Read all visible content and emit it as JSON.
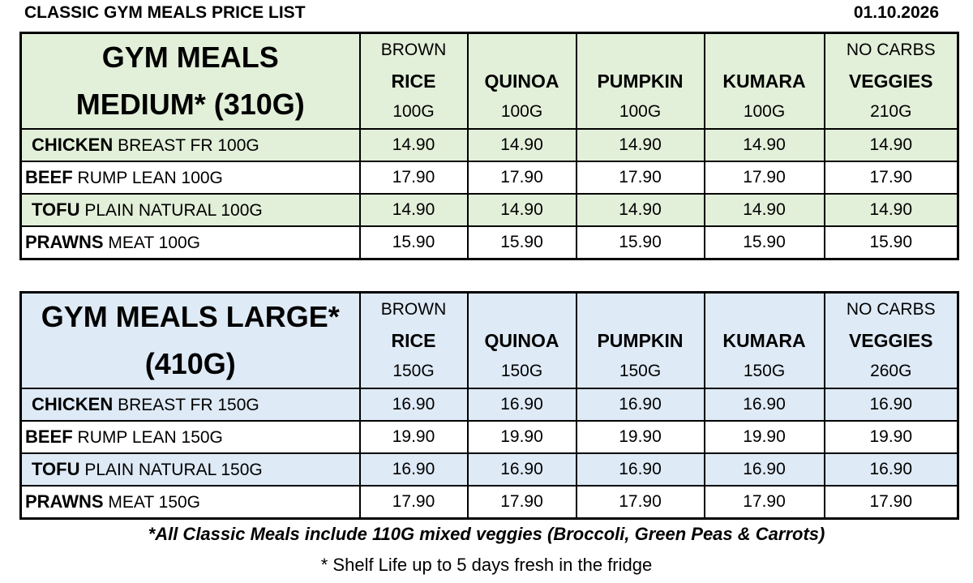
{
  "header": {
    "title": "CLASSIC GYM MEALS PRICE LIST",
    "date": "01.10.2026"
  },
  "tables": [
    {
      "title_lines": [
        "GYM MEALS",
        "MEDIUM* (310G)"
      ],
      "columns": [
        {
          "note": "BROWN",
          "name": "RICE",
          "weight": "100G"
        },
        {
          "name": "QUINOA",
          "weight": "100G"
        },
        {
          "name": "PUMPKIN",
          "weight": "100G"
        },
        {
          "name": "KUMARA",
          "weight": "100G"
        },
        {
          "note": "NO CARBS",
          "name": "VEGGIES",
          "weight": "210G"
        }
      ],
      "rows": [
        {
          "protein": "CHICKEN",
          "description": "BREAST FR 100G",
          "prices": [
            "14.90",
            "14.90",
            "14.90",
            "14.90",
            "14.90"
          ]
        },
        {
          "protein": "BEEF",
          "description": "RUMP LEAN 100G",
          "prices": [
            "17.90",
            "17.90",
            "17.90",
            "17.90",
            "17.90"
          ]
        },
        {
          "protein": "TOFU",
          "description": "PLAIN NATURAL 100G",
          "prices": [
            "14.90",
            "14.90",
            "14.90",
            "14.90",
            "14.90"
          ]
        },
        {
          "protein": "PRAWNS",
          "description": "MEAT 100G",
          "prices": [
            "15.90",
            "15.90",
            "15.90",
            "15.90",
            "15.90"
          ]
        }
      ]
    },
    {
      "title_lines": [
        "GYM MEALS LARGE*",
        "(410G)"
      ],
      "columns": [
        {
          "note": "BROWN",
          "name": "RICE",
          "weight": "150G"
        },
        {
          "name": "QUINOA",
          "weight": "150G"
        },
        {
          "name": "PUMPKIN",
          "weight": "150G"
        },
        {
          "name": "KUMARA",
          "weight": "150G"
        },
        {
          "note": "NO CARBS",
          "name": "VEGGIES",
          "weight": "260G"
        }
      ],
      "rows": [
        {
          "protein": "CHICKEN",
          "description": "BREAST FR 150G",
          "prices": [
            "16.90",
            "16.90",
            "16.90",
            "16.90",
            "16.90"
          ]
        },
        {
          "protein": "BEEF",
          "description": "RUMP LEAN 150G",
          "prices": [
            "19.90",
            "19.90",
            "19.90",
            "19.90",
            "19.90"
          ]
        },
        {
          "protein": "TOFU",
          "description": "PLAIN NATURAL 150G",
          "prices": [
            "16.90",
            "16.90",
            "16.90",
            "16.90",
            "16.90"
          ]
        },
        {
          "protein": "PRAWNS",
          "description": "MEAT 150G",
          "prices": [
            "17.90",
            "17.90",
            "17.90",
            "17.90",
            "17.90"
          ]
        }
      ]
    }
  ],
  "footer": {
    "note": "*All Classic Meals include 110G mixed veggies (Broccoli, Green Peas & Carrots)",
    "shelf_life": "* Shelf Life up to 5 days fresh in the fridge"
  }
}
